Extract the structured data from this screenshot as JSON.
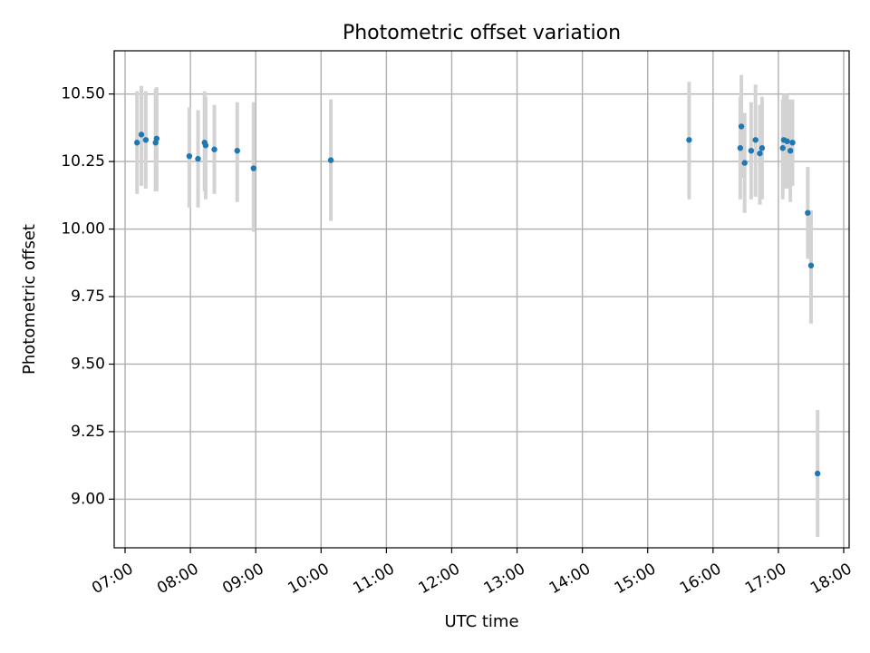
{
  "chart_data": {
    "type": "scatter",
    "title": "Photometric offset variation",
    "xlabel": "UTC time",
    "ylabel": "Photometric offset",
    "xlim": [
      "06:50",
      "18:05"
    ],
    "ylim": [
      8.82,
      10.66
    ],
    "grid": true,
    "x_ticks": [
      "07:00",
      "08:00",
      "09:00",
      "10:00",
      "11:00",
      "12:00",
      "13:00",
      "14:00",
      "15:00",
      "16:00",
      "17:00",
      "18:00"
    ],
    "y_ticks": [
      9.0,
      9.25,
      9.5,
      9.75,
      10.0,
      10.25,
      10.5
    ],
    "y_tick_labels": [
      "9.00",
      "9.25",
      "9.50",
      "9.75",
      "10.00",
      "10.25",
      "10.50"
    ],
    "colors": {
      "points": "#1f77b4",
      "error_bars": "#d3d3d3",
      "grid": "#b0b0b0"
    },
    "points": [
      {
        "time": "07:11",
        "y": 10.32,
        "err_low": 10.13,
        "err_high": 10.51
      },
      {
        "time": "07:15",
        "y": 10.35,
        "err_low": 10.16,
        "err_high": 10.53
      },
      {
        "time": "07:19",
        "y": 10.33,
        "err_low": 10.15,
        "err_high": 10.51
      },
      {
        "time": "07:28",
        "y": 10.32,
        "err_low": 10.14,
        "err_high": 10.52
      },
      {
        "time": "07:29",
        "y": 10.335,
        "err_low": 10.14,
        "err_high": 10.525
      },
      {
        "time": "07:59",
        "y": 10.27,
        "err_low": 10.08,
        "err_high": 10.45
      },
      {
        "time": "08:07",
        "y": 10.26,
        "err_low": 10.08,
        "err_high": 10.44
      },
      {
        "time": "08:13",
        "y": 10.32,
        "err_low": 10.14,
        "err_high": 10.51
      },
      {
        "time": "08:14",
        "y": 10.31,
        "err_low": 10.11,
        "err_high": 10.49
      },
      {
        "time": "08:22",
        "y": 10.295,
        "err_low": 10.13,
        "err_high": 10.46
      },
      {
        "time": "08:43",
        "y": 10.29,
        "err_low": 10.1,
        "err_high": 10.47
      },
      {
        "time": "08:58",
        "y": 10.225,
        "err_low": 9.99,
        "err_high": 10.47
      },
      {
        "time": "10:09",
        "y": 10.255,
        "err_low": 10.03,
        "err_high": 10.48
      },
      {
        "time": "15:38",
        "y": 10.33,
        "err_low": 10.11,
        "err_high": 10.545
      },
      {
        "time": "16:25",
        "y": 10.3,
        "err_low": 10.11,
        "err_high": 10.49
      },
      {
        "time": "16:26",
        "y": 10.38,
        "err_low": 10.19,
        "err_high": 10.57
      },
      {
        "time": "16:29",
        "y": 10.245,
        "err_low": 10.06,
        "err_high": 10.43
      },
      {
        "time": "16:35",
        "y": 10.29,
        "err_low": 10.11,
        "err_high": 10.47
      },
      {
        "time": "16:39",
        "y": 10.33,
        "err_low": 10.12,
        "err_high": 10.535
      },
      {
        "time": "16:43",
        "y": 10.28,
        "err_low": 10.09,
        "err_high": 10.46
      },
      {
        "time": "16:45",
        "y": 10.3,
        "err_low": 10.11,
        "err_high": 10.49
      },
      {
        "time": "17:04",
        "y": 10.3,
        "err_low": 10.11,
        "err_high": 10.48
      },
      {
        "time": "17:05",
        "y": 10.33,
        "err_low": 10.15,
        "err_high": 10.5
      },
      {
        "time": "17:08",
        "y": 10.325,
        "err_low": 10.15,
        "err_high": 10.5
      },
      {
        "time": "17:11",
        "y": 10.29,
        "err_low": 10.1,
        "err_high": 10.48
      },
      {
        "time": "17:13",
        "y": 10.32,
        "err_low": 10.16,
        "err_high": 10.48
      },
      {
        "time": "17:27",
        "y": 10.06,
        "err_low": 9.89,
        "err_high": 10.23
      },
      {
        "time": "17:30",
        "y": 9.865,
        "err_low": 9.65,
        "err_high": 10.07
      },
      {
        "time": "17:36",
        "y": 9.095,
        "err_low": 8.86,
        "err_high": 9.33
      }
    ]
  }
}
